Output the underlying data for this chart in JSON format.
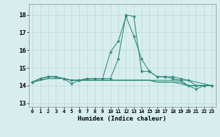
{
  "xlabel": "Humidex (Indice chaleur)",
  "ylabel": "",
  "bg_color": "#d8eeee",
  "grid_color": "#b8d8d8",
  "line_color": "#2e8b7a",
  "xlim": [
    -0.5,
    23.5
  ],
  "ylim": [
    12.8,
    18.6
  ],
  "yticks": [
    13,
    14,
    15,
    16,
    17,
    18
  ],
  "xticks": [
    0,
    1,
    2,
    3,
    4,
    5,
    6,
    7,
    8,
    9,
    10,
    11,
    12,
    13,
    14,
    15,
    16,
    17,
    18,
    19,
    20,
    21,
    22,
    23
  ],
  "series": [
    [
      14.2,
      14.4,
      14.5,
      14.5,
      14.4,
      14.1,
      14.3,
      14.4,
      14.4,
      14.4,
      15.9,
      16.5,
      17.9,
      16.8,
      15.5,
      14.8,
      14.5,
      14.5,
      14.5,
      14.4,
      14.3,
      14.0,
      14.0,
      14.0
    ],
    [
      14.2,
      14.4,
      14.5,
      14.5,
      14.4,
      14.3,
      14.3,
      14.4,
      14.4,
      14.4,
      14.4,
      15.5,
      18.0,
      17.9,
      14.8,
      14.8,
      14.5,
      14.5,
      14.4,
      14.3,
      14.0,
      13.8,
      14.0,
      14.0
    ],
    [
      14.2,
      14.4,
      14.5,
      14.5,
      14.4,
      14.3,
      14.3,
      14.3,
      14.3,
      14.3,
      14.3,
      14.3,
      14.3,
      14.3,
      14.3,
      14.3,
      14.3,
      14.3,
      14.3,
      14.3,
      14.3,
      14.2,
      14.1,
      14.0
    ],
    [
      14.2,
      14.3,
      14.4,
      14.4,
      14.4,
      14.3,
      14.3,
      14.3,
      14.3,
      14.3,
      14.3,
      14.3,
      14.3,
      14.3,
      14.3,
      14.3,
      14.2,
      14.2,
      14.2,
      14.2,
      14.0,
      14.0,
      14.0,
      14.0
    ],
    [
      14.2,
      14.3,
      14.4,
      14.4,
      14.4,
      14.3,
      14.3,
      14.3,
      14.3,
      14.3,
      14.3,
      14.3,
      14.3,
      14.3,
      14.3,
      14.3,
      14.2,
      14.2,
      14.2,
      14.1,
      14.0,
      14.0,
      14.0,
      14.0
    ]
  ]
}
